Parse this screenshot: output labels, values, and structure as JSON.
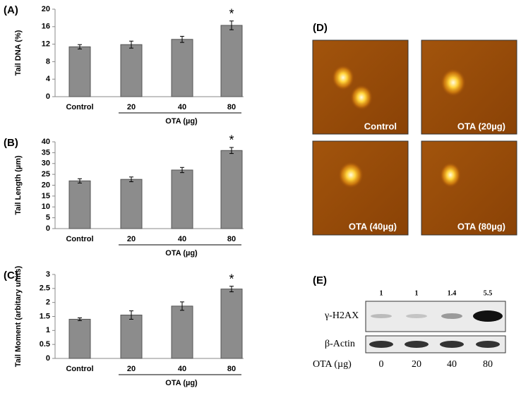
{
  "chart_data": [
    {
      "type": "bar",
      "panel": "(A)",
      "y_label": "Tail DNA (%)",
      "categories": [
        "Control",
        "20",
        "40",
        "80"
      ],
      "group_label": "OTA (µg)",
      "values": [
        11.4,
        11.9,
        13.1,
        16.3
      ],
      "errors": [
        0.5,
        0.8,
        0.7,
        1.0
      ],
      "color": "#8c8c8c",
      "annotation": "*",
      "ylim": [
        0,
        20
      ],
      "yticks": [
        0,
        4,
        8,
        12,
        16,
        20
      ]
    },
    {
      "type": "bar",
      "panel": "(B)",
      "y_label": "Tail Length (µm)",
      "categories": [
        "Control",
        "20",
        "40",
        "80"
      ],
      "group_label": "OTA (µg)",
      "values": [
        22,
        22.7,
        27,
        36
      ],
      "errors": [
        1.0,
        1.1,
        1.2,
        1.4
      ],
      "color": "#8c8c8c",
      "annotation": "*",
      "ylim": [
        0,
        40
      ],
      "yticks": [
        0,
        5,
        10,
        15,
        20,
        25,
        30,
        35,
        40
      ]
    },
    {
      "type": "bar",
      "panel": "(C)",
      "y_label": "Tail Moment (arbitary units)",
      "categories": [
        "Control",
        "20",
        "40",
        "80"
      ],
      "group_label": "OTA (µg)",
      "values": [
        1.4,
        1.55,
        1.87,
        2.48
      ],
      "errors": [
        0.05,
        0.15,
        0.15,
        0.1
      ],
      "color": "#8c8c8c",
      "annotation": "*",
      "ylim": [
        0,
        3
      ],
      "yticks": [
        0,
        0.5,
        1,
        1.5,
        2,
        2.5,
        3
      ]
    }
  ],
  "panel_d": {
    "label": "(D)",
    "images": [
      "Control",
      "OTA (20µg)",
      "OTA (40µg)",
      "OTA (80µg)"
    ]
  },
  "panel_e": {
    "label": "(E)",
    "intensities": [
      1,
      1,
      1.4,
      5.5
    ],
    "rows": [
      "γ-H2AX",
      "β-Actin"
    ],
    "dose_label": "OTA (µg)",
    "doses": [
      "0",
      "20",
      "40",
      "80"
    ]
  }
}
